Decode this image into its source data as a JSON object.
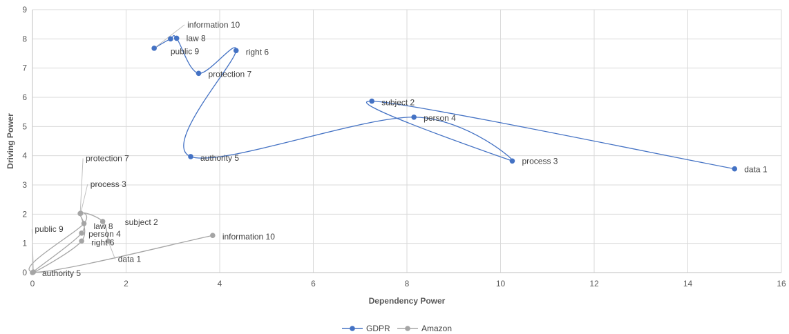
{
  "chart_data": {
    "type": "scatter",
    "xlabel": "Dependency Power",
    "ylabel": "Driving Power",
    "xlim": [
      0,
      16
    ],
    "ylim": [
      0,
      9
    ],
    "xticks": [
      0,
      2,
      4,
      6,
      8,
      10,
      12,
      14,
      16
    ],
    "yticks": [
      0,
      1,
      2,
      3,
      4,
      5,
      6,
      7,
      8,
      9
    ],
    "grid": true,
    "legend_position": "bottom",
    "lines": "smoothed",
    "series": [
      {
        "name": "GDPR",
        "color": "#4472C4",
        "points": [
          {
            "label": "data 1",
            "x": 15.0,
            "y": 3.55
          },
          {
            "label": "subject 2",
            "x": 7.25,
            "y": 5.87
          },
          {
            "label": "process 3",
            "x": 10.25,
            "y": 3.82
          },
          {
            "label": "person 4",
            "x": 8.15,
            "y": 5.32
          },
          {
            "label": "authority 5",
            "x": 3.38,
            "y": 3.97
          },
          {
            "label": "right 6",
            "x": 4.35,
            "y": 7.6
          },
          {
            "label": "protection 7",
            "x": 3.55,
            "y": 6.82
          },
          {
            "label": "law 8",
            "x": 3.08,
            "y": 8.02
          },
          {
            "label": "public 9",
            "x": 2.95,
            "y": 8.0
          },
          {
            "label": "information 10",
            "x": 2.6,
            "y": 7.68
          }
        ]
      },
      {
        "name": "Amazon",
        "color": "#A5A5A5",
        "points": [
          {
            "label": "data 1",
            "x": 1.62,
            "y": 1.07
          },
          {
            "label": "subject 2",
            "x": 1.5,
            "y": 1.75
          },
          {
            "label": "process 3",
            "x": 1.03,
            "y": 2.03
          },
          {
            "label": "person 4",
            "x": 1.05,
            "y": 1.35
          },
          {
            "label": "authority 5",
            "x": 0.0,
            "y": 0.0
          },
          {
            "label": "right 6",
            "x": 1.05,
            "y": 1.08
          },
          {
            "label": "protection 7",
            "x": 1.02,
            "y": 2.02
          },
          {
            "label": "law 8",
            "x": 1.1,
            "y": 1.68
          },
          {
            "label": "public 9",
            "x": 0.02,
            "y": 0.02
          },
          {
            "label": "information 10",
            "x": 3.85,
            "y": 1.27
          }
        ]
      }
    ]
  }
}
